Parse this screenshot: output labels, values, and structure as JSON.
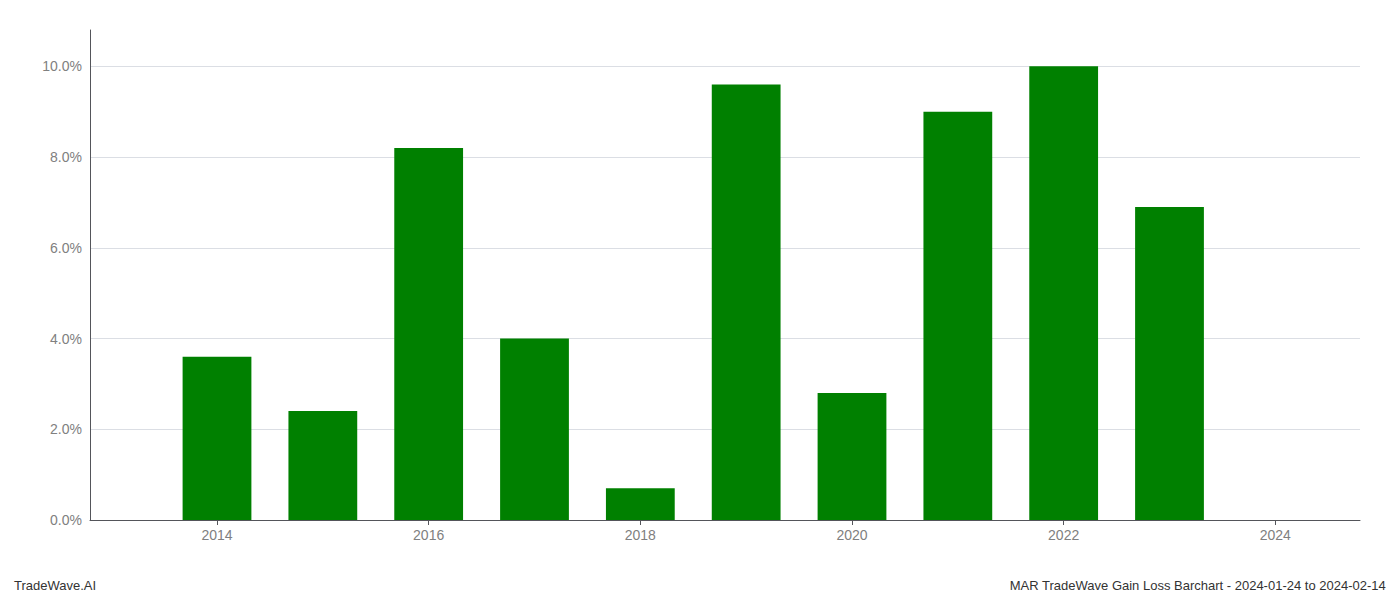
{
  "chart_data": {
    "type": "bar",
    "x": [
      2014,
      2015,
      2016,
      2017,
      2018,
      2019,
      2020,
      2021,
      2022,
      2023
    ],
    "values": [
      0.036,
      0.024,
      0.082,
      0.04,
      0.007,
      0.096,
      0.028,
      0.09,
      0.1,
      0.069
    ],
    "color": "#008000",
    "xlim": [
      2012.8,
      2024.8
    ],
    "xticks": [
      2014,
      2016,
      2018,
      2020,
      2022,
      2024
    ],
    "ylim": [
      0,
      0.108
    ],
    "yticks": [
      {
        "value": 0.0,
        "label": "0.0%"
      },
      {
        "value": 0.02,
        "label": "2.0%"
      },
      {
        "value": 0.04,
        "label": "4.0%"
      },
      {
        "value": 0.06,
        "label": "6.0%"
      },
      {
        "value": 0.08,
        "label": "8.0%"
      },
      {
        "value": 0.1,
        "label": "10.0%"
      }
    ],
    "grid": true,
    "annotations": [
      "TradeWave.AI",
      "MAR TradeWave Gain Loss Barchart - 2024-01-24 to 2024-02-14"
    ]
  }
}
